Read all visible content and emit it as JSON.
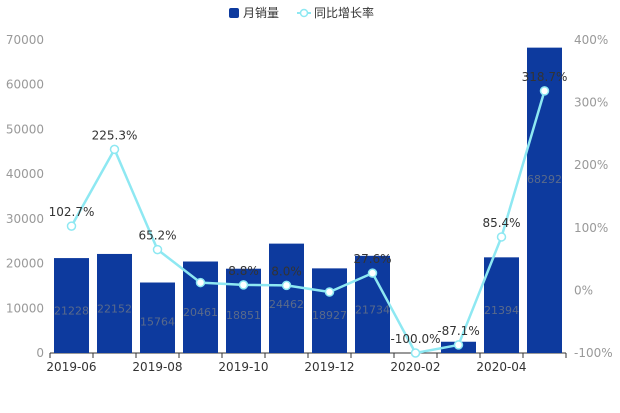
{
  "chart_data": {
    "type": "bar",
    "title": "",
    "xlabel": "",
    "ylabel": "",
    "categories": [
      "2019-06",
      "2019-07",
      "2019-08",
      "2019-09",
      "2019-10",
      "2019-11",
      "2019-12",
      "2020-01",
      "2020-02",
      "2020-03",
      "2020-04",
      "2020-05"
    ],
    "x_tick_labels": [
      "2019-06",
      "2019-08",
      "2019-10",
      "2019-12",
      "2020-02",
      "2020-04"
    ],
    "ylim_left": [
      0,
      70000
    ],
    "ylim_right": [
      -100,
      400
    ],
    "left_ticks": [
      "0",
      "10000",
      "20000",
      "30000",
      "40000",
      "50000",
      "60000",
      "70000"
    ],
    "right_ticks": [
      "-100%",
      "0%",
      "100%",
      "200%",
      "300%",
      "400%"
    ],
    "legend_position": "top-center",
    "grid": false,
    "colors": {
      "bar": "#0d3a9e",
      "line": "#8ee8f2"
    },
    "series": [
      {
        "name": "月销量",
        "type": "bar",
        "axis": "left",
        "values": [
          21228,
          22152,
          15764,
          20461,
          18851,
          24462,
          18927,
          21734,
          0,
          2518,
          21394,
          68292
        ],
        "labels": [
          "21228",
          "22152",
          "15764",
          "20461",
          "18851",
          "24462",
          "18927",
          "21734",
          "",
          "",
          "21394",
          "68292"
        ]
      },
      {
        "name": "同比增长率",
        "type": "line",
        "axis": "right",
        "values": [
          102.7,
          225.3,
          65.2,
          12.5,
          8.8,
          8.0,
          -2.6,
          27.6,
          -100.0,
          -87.1,
          85.4,
          318.7
        ],
        "labels": [
          "102.7%",
          "225.3%",
          "65.2%",
          "",
          "8.8%",
          "8.0%",
          "",
          "27.6%",
          "-100.0%",
          "-87.1%",
          "85.4%",
          "318.7%"
        ]
      }
    ]
  }
}
